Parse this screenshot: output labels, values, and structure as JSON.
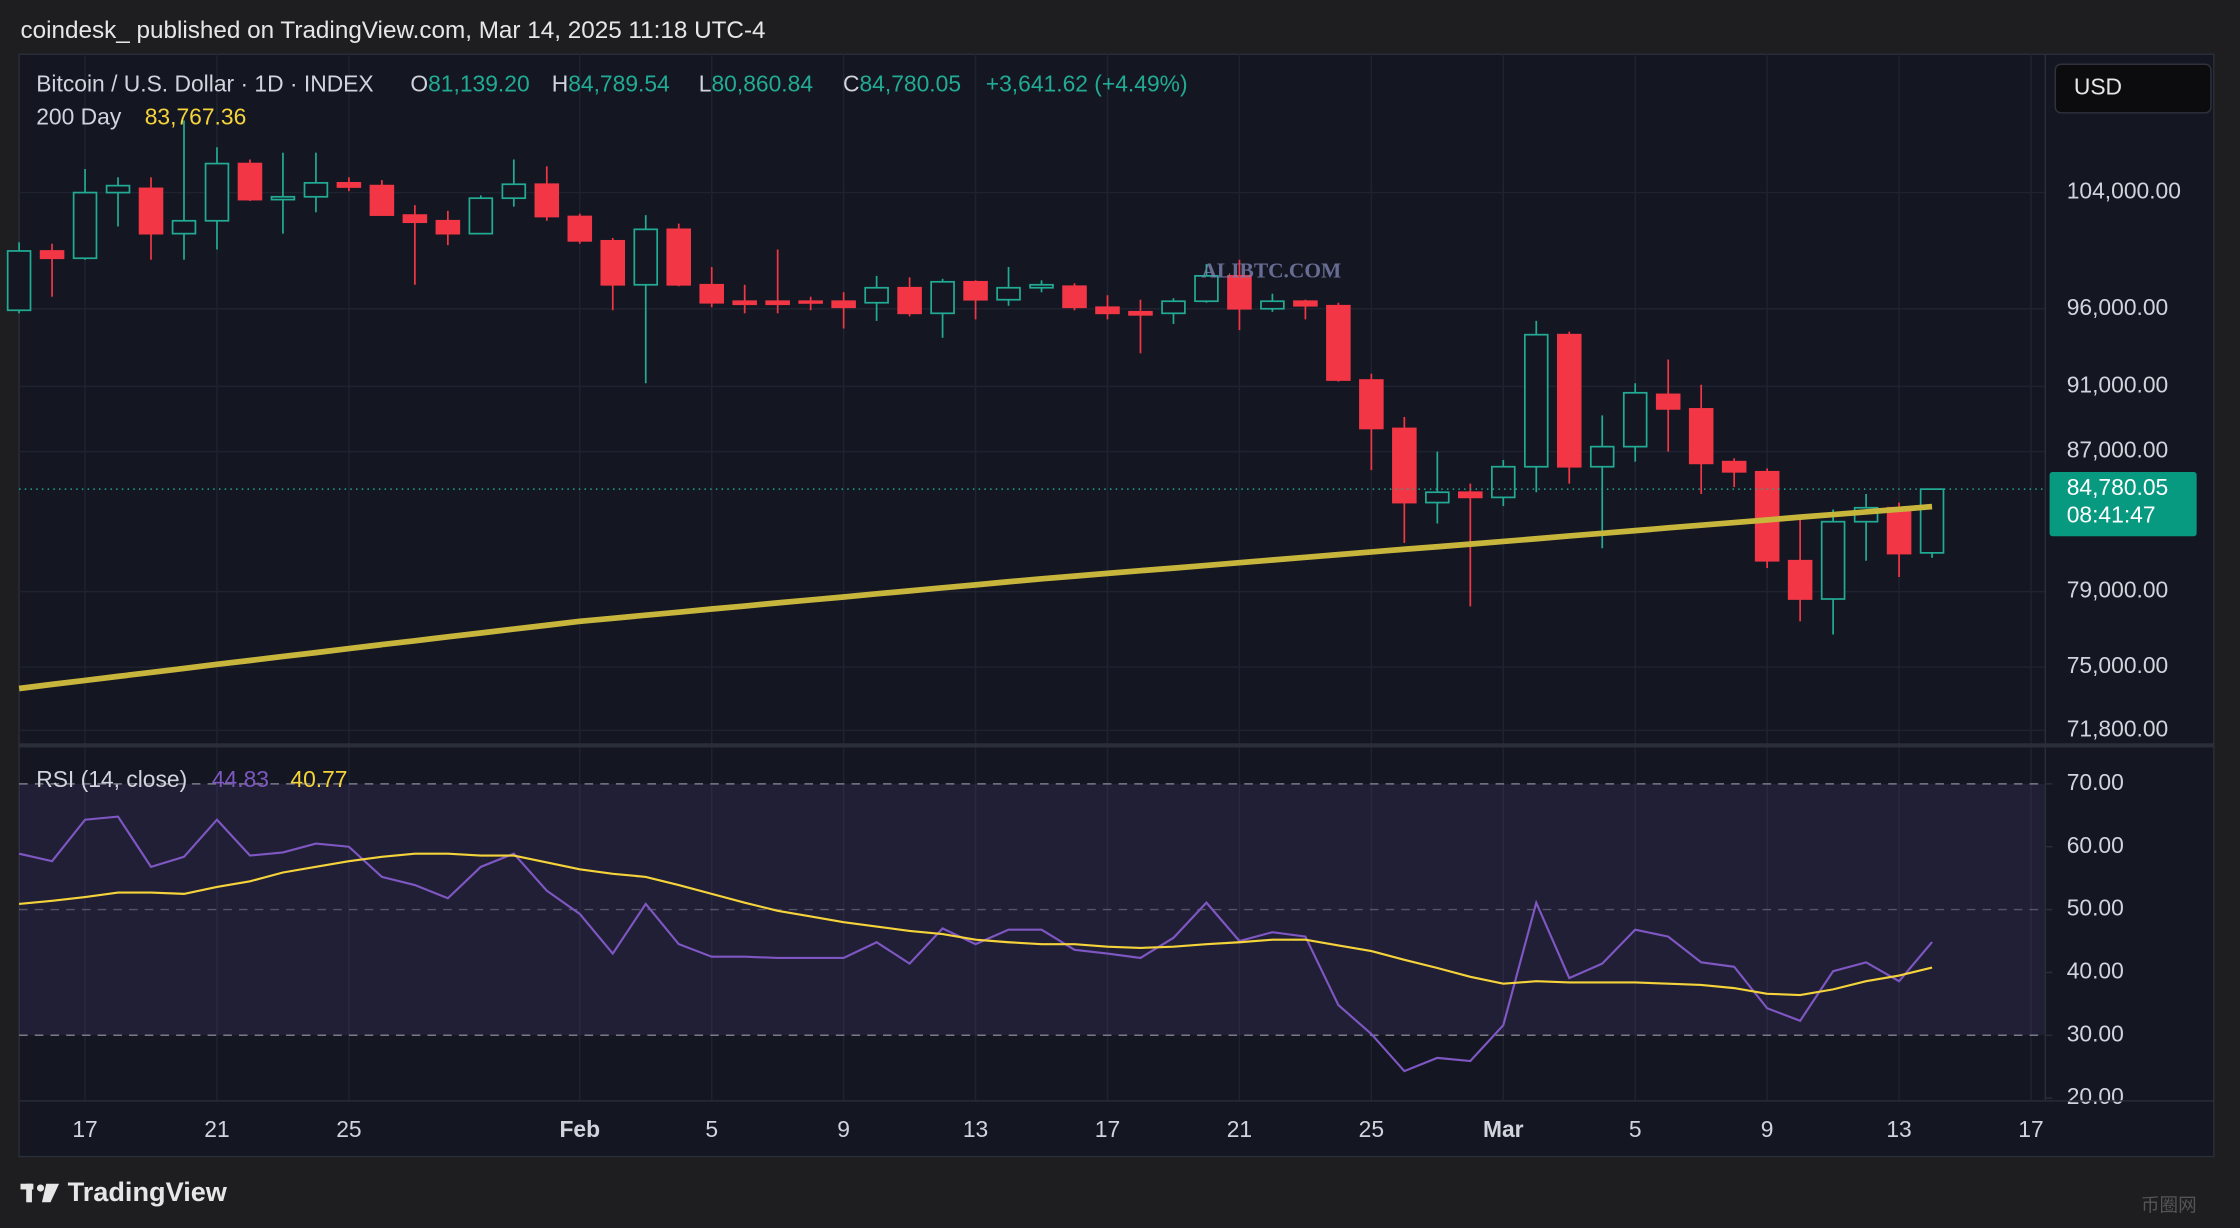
{
  "header": {
    "publisher": "coindesk_ published on TradingView.com, Mar 14, 2025 11:18 UTC-4"
  },
  "currency_button": "USD",
  "watermarks": [
    "ALIBTC.COM",
    "币圈网"
  ],
  "footer": {
    "brand": "TradingView"
  },
  "chart_data": [
    {
      "type": "candlestick",
      "title": "Bitcoin / U.S. Dollar · 1D · INDEX",
      "ohlc_labels": [
        {
          "key": "O",
          "text": "81,139.20"
        },
        {
          "key": "H",
          "text": "84,789.54"
        },
        {
          "key": "L",
          "text": "80,860.84"
        },
        {
          "key": "C",
          "text": "84,780.05"
        }
      ],
      "change": "+3,641.62 (+4.49%)",
      "last_price_label": "84,780.05",
      "countdown": "08:41:47",
      "up_color": "#22ab94",
      "down_color": "#f23645",
      "log_scale": true,
      "grid": true,
      "x": [
        "2025-01-15",
        "2025-01-16",
        "2025-01-17",
        "2025-01-18",
        "2025-01-19",
        "2025-01-20",
        "2025-01-21",
        "2025-01-22",
        "2025-01-23",
        "2025-01-24",
        "2025-01-25",
        "2025-01-26",
        "2025-01-27",
        "2025-01-28",
        "2025-01-29",
        "2025-01-30",
        "2025-01-31",
        "2025-02-01",
        "2025-02-02",
        "2025-02-03",
        "2025-02-04",
        "2025-02-05",
        "2025-02-06",
        "2025-02-07",
        "2025-02-08",
        "2025-02-09",
        "2025-02-10",
        "2025-02-11",
        "2025-02-12",
        "2025-02-13",
        "2025-02-14",
        "2025-02-15",
        "2025-02-16",
        "2025-02-17",
        "2025-02-18",
        "2025-02-19",
        "2025-02-20",
        "2025-02-21",
        "2025-02-22",
        "2025-02-23",
        "2025-02-24",
        "2025-02-25",
        "2025-02-26",
        "2025-02-27",
        "2025-02-28",
        "2025-03-01",
        "2025-03-02",
        "2025-03-03",
        "2025-03-04",
        "2025-03-05",
        "2025-03-06",
        "2025-03-07",
        "2025-03-08",
        "2025-03-09",
        "2025-03-10",
        "2025-03-11",
        "2025-03-12",
        "2025-03-13",
        "2025-03-14"
      ],
      "open": [
        95900,
        99900,
        99400,
        104000,
        104300,
        101100,
        102000,
        106100,
        103500,
        103700,
        104700,
        104500,
        102400,
        102000,
        101100,
        103600,
        104600,
        102300,
        100600,
        97600,
        101400,
        97600,
        96500,
        96500,
        96500,
        96500,
        96400,
        97400,
        95700,
        97800,
        96600,
        97400,
        97500,
        96100,
        95800,
        95700,
        96500,
        98200,
        96000,
        96500,
        96200,
        91400,
        88400,
        84000,
        84600,
        84300,
        86100,
        94300,
        86100,
        87300,
        90500,
        89600,
        86400,
        85800,
        80700,
        78600,
        82900,
        83700,
        81139.2
      ],
      "high": [
        100500,
        100400,
        105700,
        105100,
        105100,
        109300,
        107300,
        106400,
        106900,
        106900,
        105100,
        104900,
        103100,
        102700,
        103800,
        106400,
        105900,
        102500,
        100800,
        102400,
        101800,
        98800,
        97600,
        100000,
        96800,
        97100,
        98200,
        98100,
        98000,
        97900,
        98800,
        97900,
        97700,
        96900,
        96600,
        96700,
        99000,
        99300,
        97000,
        96600,
        96400,
        91800,
        89100,
        87000,
        85100,
        86500,
        95200,
        94500,
        89200,
        91200,
        92700,
        91100,
        86600,
        86000,
        83000,
        83600,
        84500,
        84000,
        84789.54
      ],
      "low": [
        95700,
        96800,
        99300,
        101600,
        99300,
        99300,
        100000,
        103400,
        101100,
        102600,
        104100,
        102400,
        97600,
        100300,
        101100,
        103000,
        102000,
        100400,
        95900,
        91200,
        97500,
        96100,
        95700,
        95700,
        95900,
        94700,
        95200,
        95500,
        94100,
        95300,
        96200,
        97100,
        95900,
        95300,
        93100,
        95000,
        96400,
        94600,
        95800,
        95300,
        91300,
        85900,
        81700,
        82800,
        78200,
        83800,
        84600,
        85100,
        81400,
        86400,
        87000,
        84500,
        84900,
        80300,
        77400,
        76700,
        80700,
        79800,
        80860.84
      ],
      "close": [
        99900,
        99400,
        104000,
        104500,
        101100,
        102000,
        106100,
        103500,
        103700,
        104700,
        104400,
        102400,
        101900,
        101100,
        103600,
        104600,
        102300,
        100600,
        97600,
        101400,
        97600,
        96400,
        96300,
        96300,
        96400,
        96100,
        97400,
        95700,
        97800,
        96600,
        97400,
        97600,
        96100,
        95700,
        95600,
        96500,
        98200,
        96000,
        96500,
        96200,
        91400,
        88400,
        84000,
        84600,
        84300,
        86100,
        94300,
        86100,
        87300,
        90600,
        89600,
        86300,
        85800,
        80700,
        78600,
        82900,
        83700,
        81100,
        84780.05
      ],
      "overlays": [
        {
          "name": "200 Day",
          "color": "#c8b63c",
          "value_label": "83,767.36",
          "values": [
            73900,
            74110,
            74310,
            74520,
            74720,
            74930,
            75140,
            75340,
            75550,
            75750,
            75960,
            76170,
            76370,
            76580,
            76780,
            76990,
            77190,
            77400,
            77560,
            77730,
            77890,
            78060,
            78220,
            78390,
            78550,
            78710,
            78880,
            79040,
            79210,
            79370,
            79540,
            79700,
            79850,
            80000,
            80150,
            80290,
            80440,
            80590,
            80740,
            80890,
            81040,
            81190,
            81340,
            81480,
            81630,
            81780,
            81930,
            82090,
            82240,
            82390,
            82550,
            82700,
            82850,
            83000,
            83160,
            83310,
            83460,
            83610,
            83767.36
          ]
        }
      ],
      "xlim": [
        "2025-01-15",
        "2025-03-17"
      ],
      "xticks": [
        {
          "value": "2025-01-17",
          "label": "17"
        },
        {
          "value": "2025-01-21",
          "label": "21"
        },
        {
          "value": "2025-01-25",
          "label": "25"
        },
        {
          "value": "2025-02-01",
          "label": "Feb"
        },
        {
          "value": "2025-02-05",
          "label": "5"
        },
        {
          "value": "2025-02-09",
          "label": "9"
        },
        {
          "value": "2025-02-13",
          "label": "13"
        },
        {
          "value": "2025-02-17",
          "label": "17"
        },
        {
          "value": "2025-02-21",
          "label": "21"
        },
        {
          "value": "2025-02-25",
          "label": "25"
        },
        {
          "value": "2025-03-01",
          "label": "Mar"
        },
        {
          "value": "2025-03-05",
          "label": "5"
        },
        {
          "value": "2025-03-09",
          "label": "9"
        },
        {
          "value": "2025-03-13",
          "label": "13"
        },
        {
          "value": "2025-03-17",
          "label": "17"
        }
      ],
      "ylim": [
        71200,
        114400
      ],
      "yticks": [
        {
          "value": 71800,
          "label": "71,800.00"
        },
        {
          "value": 75000,
          "label": "75,000.00"
        },
        {
          "value": 79000,
          "label": "79,000.00"
        },
        {
          "value": 87000,
          "label": "87,000.00"
        },
        {
          "value": 91000,
          "label": "91,000.00"
        },
        {
          "value": 96000,
          "label": "96,000.00"
        },
        {
          "value": 104000,
          "label": "104,000.00"
        }
      ]
    },
    {
      "type": "line",
      "title": "RSI (14, close)",
      "x": [
        "2025-01-15",
        "2025-01-16",
        "2025-01-17",
        "2025-01-18",
        "2025-01-19",
        "2025-01-20",
        "2025-01-21",
        "2025-01-22",
        "2025-01-23",
        "2025-01-24",
        "2025-01-25",
        "2025-01-26",
        "2025-01-27",
        "2025-01-28",
        "2025-01-29",
        "2025-01-30",
        "2025-01-31",
        "2025-02-01",
        "2025-02-02",
        "2025-02-03",
        "2025-02-04",
        "2025-02-05",
        "2025-02-06",
        "2025-02-07",
        "2025-02-08",
        "2025-02-09",
        "2025-02-10",
        "2025-02-11",
        "2025-02-12",
        "2025-02-13",
        "2025-02-14",
        "2025-02-15",
        "2025-02-16",
        "2025-02-17",
        "2025-02-18",
        "2025-02-19",
        "2025-02-20",
        "2025-02-21",
        "2025-02-22",
        "2025-02-23",
        "2025-02-24",
        "2025-02-25",
        "2025-02-26",
        "2025-02-27",
        "2025-02-28",
        "2025-03-01",
        "2025-03-02",
        "2025-03-03",
        "2025-03-04",
        "2025-03-05",
        "2025-03-06",
        "2025-03-07",
        "2025-03-08",
        "2025-03-09",
        "2025-03-10",
        "2025-03-11",
        "2025-03-12",
        "2025-03-13",
        "2025-03-14"
      ],
      "series": [
        {
          "color": "#7e57c2",
          "values": [
            58.9,
            57.7,
            64.3,
            64.8,
            56.8,
            58.4,
            64.3,
            58.6,
            59.1,
            60.5,
            60,
            55.2,
            53.9,
            51.8,
            56.8,
            58.9,
            53,
            49.3,
            43,
            50.9,
            44.5,
            42.5,
            42.5,
            42.3,
            42.3,
            42.3,
            44.8,
            41.4,
            47,
            44.5,
            46.8,
            46.8,
            43.6,
            43,
            42.3,
            45.5,
            51.1,
            45,
            46.4,
            45.7,
            34.8,
            30.2,
            24.3,
            26.4,
            25.9,
            31.6,
            51.1,
            39.1,
            41.4,
            46.8,
            45.7,
            41.6,
            40.9,
            34.3,
            32.3,
            40.2,
            41.6,
            38.6,
            44.83
          ]
        },
        {
          "color": "#f5d33a",
          "values": [
            50.9,
            51.4,
            52,
            52.7,
            52.7,
            52.5,
            53.6,
            54.5,
            55.9,
            56.8,
            57.7,
            58.4,
            58.9,
            58.9,
            58.6,
            58.6,
            57.5,
            56.4,
            55.7,
            55.2,
            53.9,
            52.5,
            51.1,
            49.8,
            48.9,
            48,
            47.3,
            46.6,
            46.1,
            45.2,
            44.8,
            44.5,
            44.5,
            44.1,
            43.9,
            44.1,
            44.5,
            44.8,
            45.2,
            45.2,
            44.3,
            43.4,
            42,
            40.7,
            39.3,
            38.2,
            38.6,
            38.4,
            38.4,
            38.4,
            38.2,
            38,
            37.5,
            36.6,
            36.4,
            37.3,
            38.6,
            39.5,
            40.77
          ]
        }
      ],
      "band": [
        30,
        70
      ],
      "midline": 50,
      "ylim": [
        19.55,
        75.45
      ],
      "yticks": [
        {
          "value": 20,
          "label": "20.00"
        },
        {
          "value": 30,
          "label": "30.00"
        },
        {
          "value": 40,
          "label": "40.00"
        },
        {
          "value": 50,
          "label": "50.00"
        },
        {
          "value": 60,
          "label": "60.00"
        },
        {
          "value": 70,
          "label": "70.00"
        }
      ]
    }
  ]
}
